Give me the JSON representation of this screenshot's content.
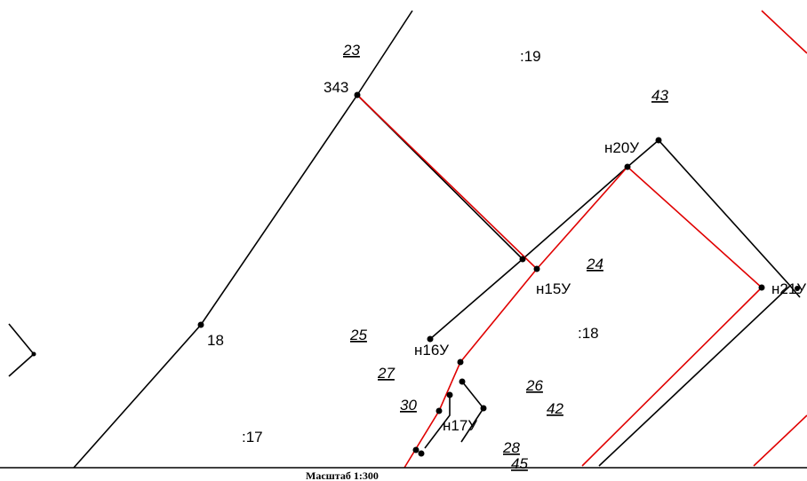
{
  "colors": {
    "black_line": "#000000",
    "red_line": "#e00000",
    "background": "#ffffff"
  },
  "scale_label": "Масштаб 1:300",
  "point_labels": [
    "343",
    "н20У",
    "н15У",
    "н21У",
    "н16У",
    "н17У",
    "18"
  ],
  "plot_labels": [
    ":19",
    ":18",
    ":17"
  ],
  "zone_labels": [
    "23",
    "43",
    "24",
    "25",
    "27",
    "26",
    "30",
    "42",
    "28",
    "45"
  ]
}
